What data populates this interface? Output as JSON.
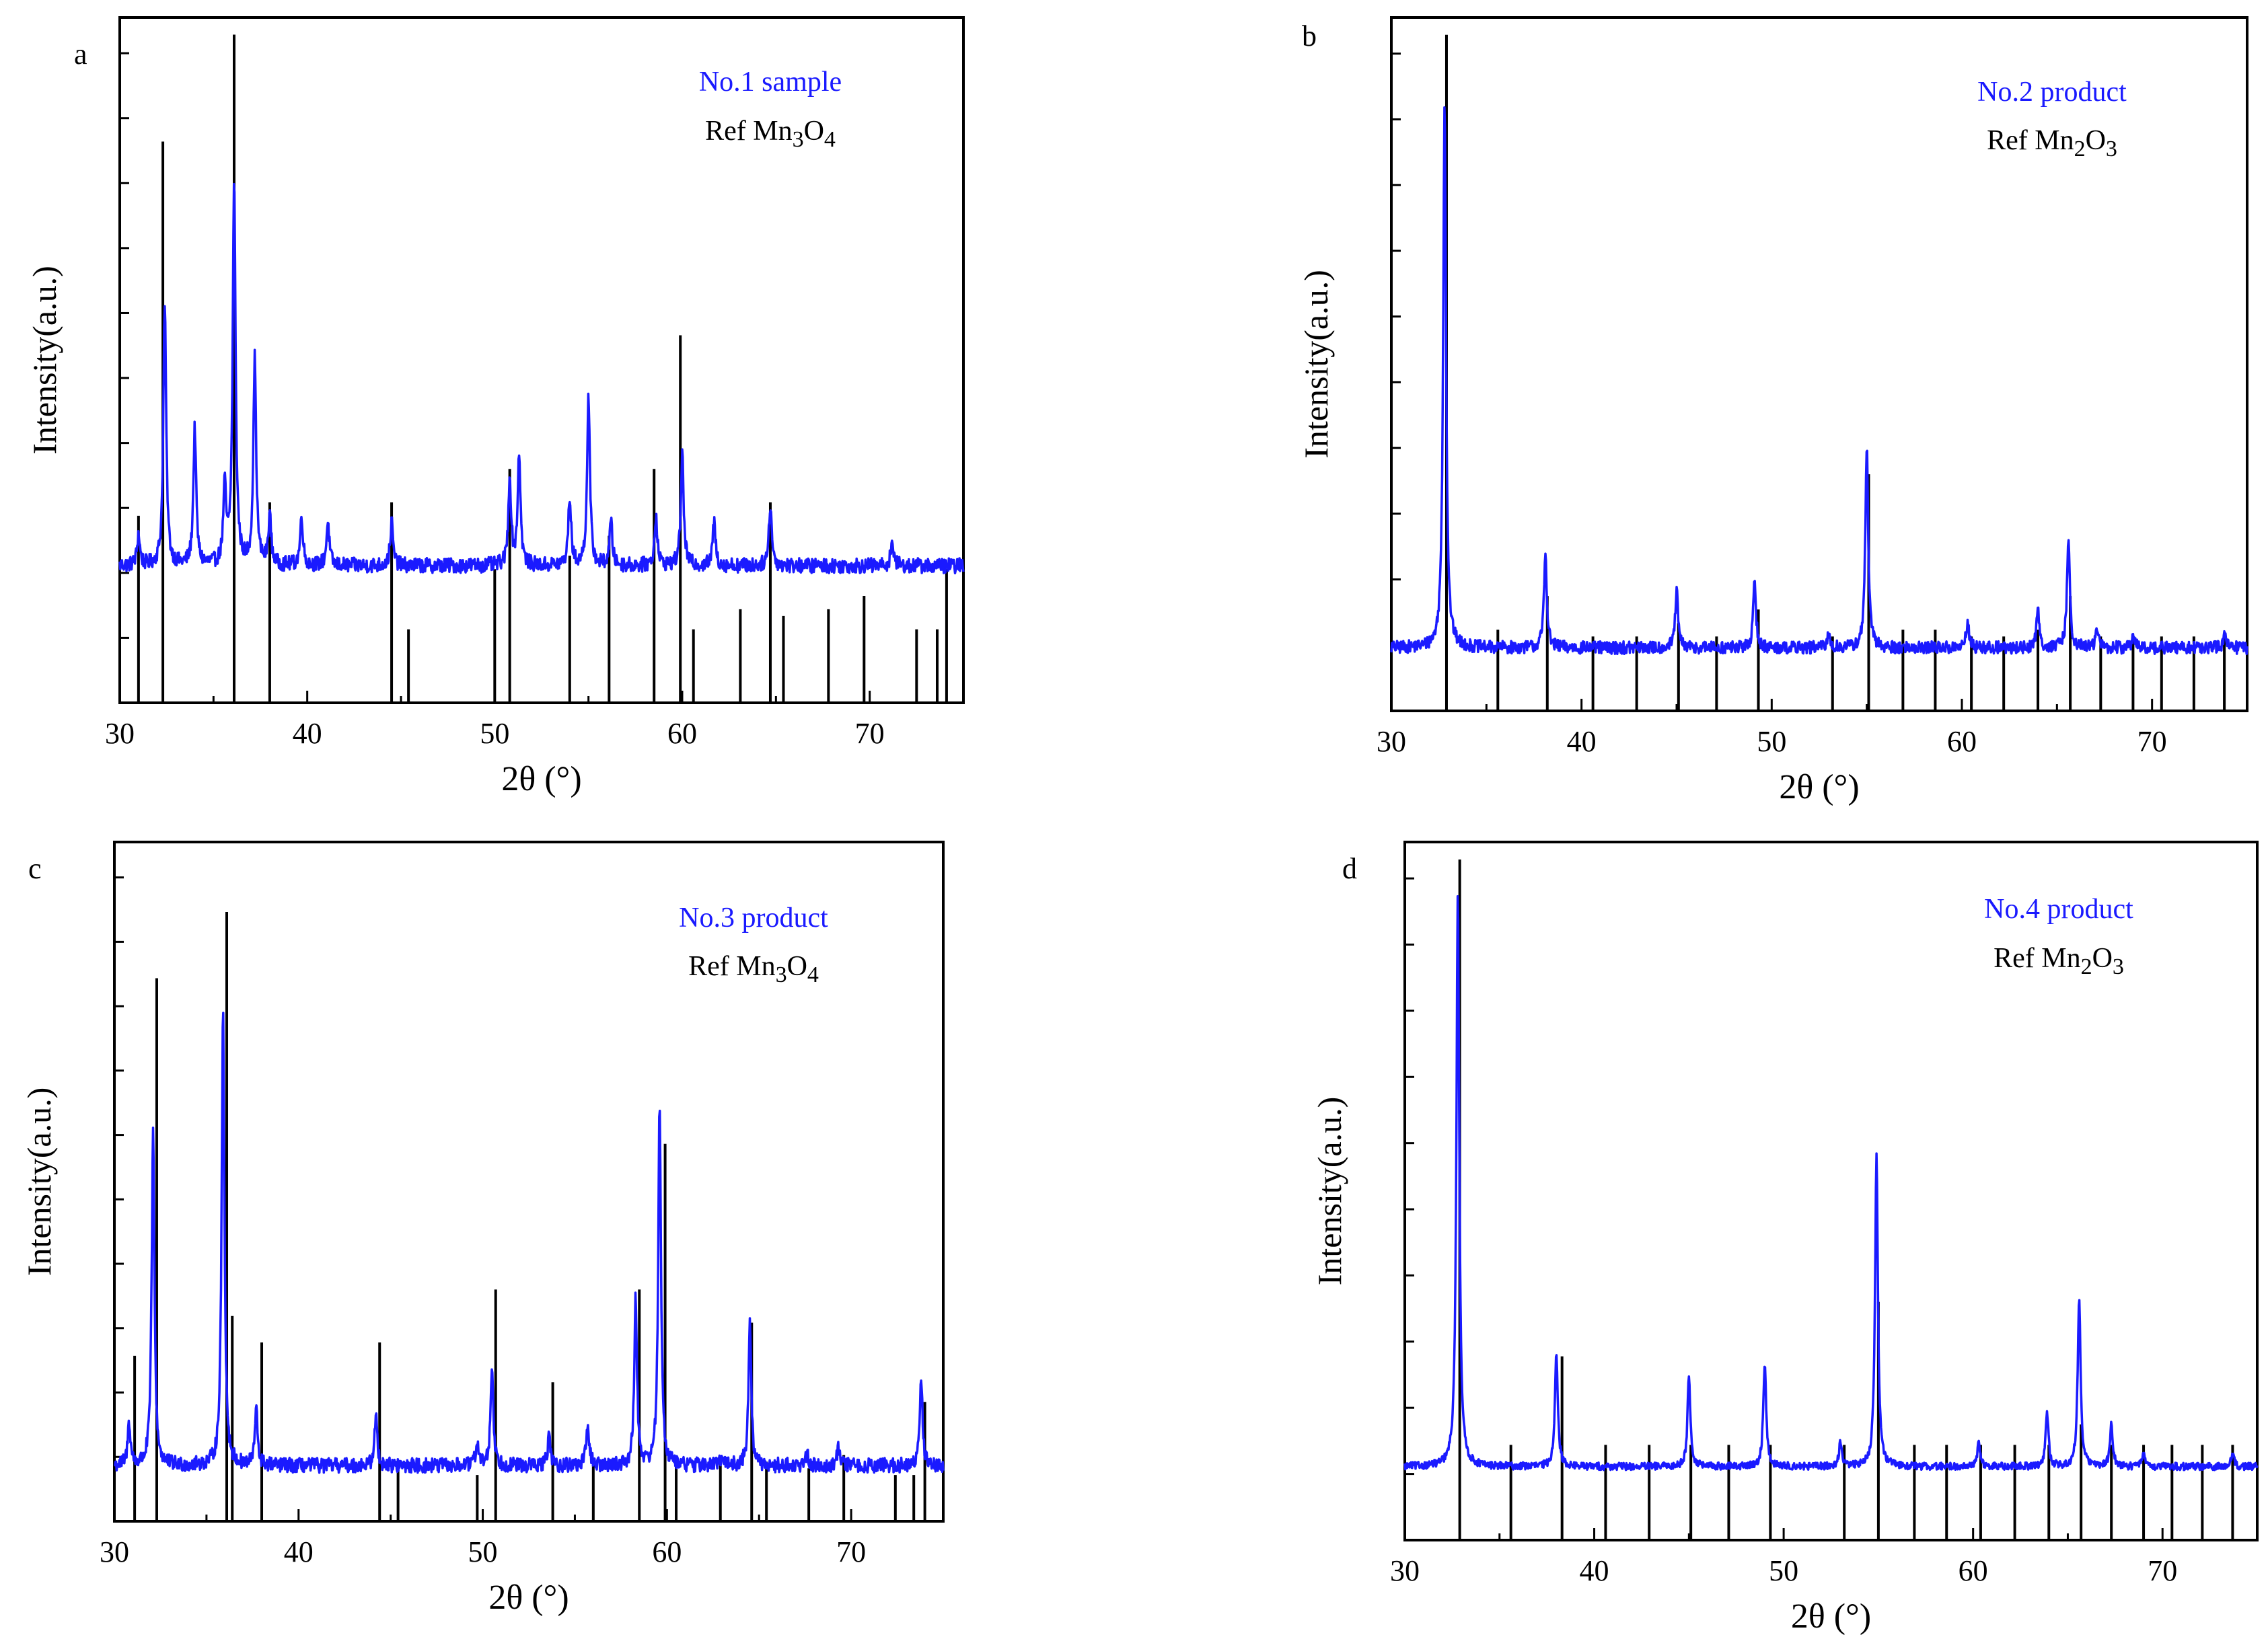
{
  "chart_data": [
    {
      "panel": "a",
      "type": "line",
      "xlabel": "2θ (°)",
      "ylabel": "Intensity(a.u.)",
      "xlim": [
        30,
        75
      ],
      "xticks": [
        30,
        40,
        50,
        60,
        70
      ],
      "ylim": [
        -0.08,
        1.02
      ],
      "baseline": 0.14,
      "noise": 0.012,
      "legend": [
        {
          "text": "No.1 sample",
          "color": "#1a1aff"
        },
        {
          "text": "Ref Mn",
          "sub1": "3",
          "mid": "O",
          "sub2": "4",
          "color": "#000000"
        }
      ],
      "series": [
        {
          "name": "No.1 sample",
          "color": "#1a1aff",
          "peaks": [
            [
              31.0,
              0.05
            ],
            [
              32.4,
              0.42
            ],
            [
              34.0,
              0.22
            ],
            [
              35.6,
              0.12
            ],
            [
              36.1,
              0.62
            ],
            [
              37.2,
              0.33
            ],
            [
              38.0,
              0.08
            ],
            [
              39.7,
              0.08
            ],
            [
              41.1,
              0.07
            ],
            [
              44.5,
              0.07
            ],
            [
              50.8,
              0.14
            ],
            [
              51.3,
              0.18
            ],
            [
              54.0,
              0.11
            ],
            [
              55.0,
              0.27
            ],
            [
              56.2,
              0.07
            ],
            [
              58.6,
              0.08
            ],
            [
              60.0,
              0.18
            ],
            [
              61.7,
              0.07
            ],
            [
              64.7,
              0.1
            ],
            [
              71.2,
              0.04
            ]
          ]
        },
        {
          "name": "Ref Mn3O4",
          "color": "#000000",
          "lines": [
            [
              31.0,
              0.28
            ],
            [
              32.3,
              0.84
            ],
            [
              36.1,
              1.0
            ],
            [
              38.0,
              0.3
            ],
            [
              44.5,
              0.3
            ],
            [
              45.4,
              0.11
            ],
            [
              50.0,
              0.2
            ],
            [
              50.8,
              0.35
            ],
            [
              54.0,
              0.22
            ],
            [
              56.1,
              0.25
            ],
            [
              58.5,
              0.35
            ],
            [
              59.9,
              0.55
            ],
            [
              60.6,
              0.11
            ],
            [
              63.1,
              0.14
            ],
            [
              64.7,
              0.3
            ],
            [
              65.4,
              0.13
            ],
            [
              67.8,
              0.14
            ],
            [
              69.7,
              0.16
            ],
            [
              72.5,
              0.11
            ],
            [
              73.6,
              0.11
            ],
            [
              74.1,
              0.2
            ]
          ]
        }
      ]
    },
    {
      "panel": "b",
      "type": "line",
      "xlabel": "2θ (°)",
      "ylabel": "Intensity(a.u.)",
      "xlim": [
        30,
        75
      ],
      "xticks": [
        30,
        40,
        50,
        60,
        70
      ],
      "ylim": [
        -0.08,
        1.02
      ],
      "baseline": 0.02,
      "noise": 0.01,
      "legend": [
        {
          "text": "No.2 product",
          "color": "#1a1aff"
        },
        {
          "text": "Ref Mn",
          "sub1": "2",
          "mid": "O",
          "sub2": "3",
          "color": "#000000"
        }
      ],
      "series": [
        {
          "name": "No.2 product",
          "color": "#1a1aff",
          "peaks": [
            [
              32.8,
              0.87
            ],
            [
              38.1,
              0.15
            ],
            [
              45.0,
              0.09
            ],
            [
              49.1,
              0.1
            ],
            [
              53.0,
              0.02
            ],
            [
              55.0,
              0.32
            ],
            [
              60.3,
              0.04
            ],
            [
              64.0,
              0.06
            ],
            [
              65.6,
              0.17
            ],
            [
              67.1,
              0.03
            ],
            [
              69.0,
              0.02
            ],
            [
              73.8,
              0.02
            ]
          ]
        },
        {
          "name": "Ref Mn2O3",
          "color": "#000000",
          "lines": [
            [
              32.9,
              1.0
            ],
            [
              35.6,
              0.12
            ],
            [
              38.2,
              0.17
            ],
            [
              40.6,
              0.11
            ],
            [
              42.9,
              0.11
            ],
            [
              45.1,
              0.13
            ],
            [
              47.1,
              0.11
            ],
            [
              49.3,
              0.15
            ],
            [
              53.2,
              0.11
            ],
            [
              55.1,
              0.35
            ],
            [
              56.9,
              0.12
            ],
            [
              58.6,
              0.12
            ],
            [
              60.5,
              0.11
            ],
            [
              62.2,
              0.11
            ],
            [
              64.0,
              0.12
            ],
            [
              65.7,
              0.17
            ],
            [
              67.3,
              0.11
            ],
            [
              69.0,
              0.11
            ],
            [
              70.5,
              0.11
            ],
            [
              72.2,
              0.11
            ],
            [
              73.8,
              0.11
            ]
          ]
        }
      ]
    },
    {
      "panel": "c",
      "type": "line",
      "xlabel": "2θ (°)",
      "ylabel": "Intensity(a.u.)",
      "xlim": [
        30,
        75
      ],
      "xticks": [
        30,
        40,
        50,
        60,
        70
      ],
      "ylim": [
        -0.08,
        1.02
      ],
      "baseline": 0.01,
      "noise": 0.012,
      "legend": [
        {
          "text": "No.3 product",
          "color": "#1a1aff"
        },
        {
          "text": "Ref Mn",
          "sub1": "3",
          "mid": "O",
          "sub2": "4",
          "color": "#000000"
        }
      ],
      "series": [
        {
          "name": "No.3 product",
          "color": "#1a1aff",
          "peaks": [
            [
              30.8,
              0.07
            ],
            [
              32.1,
              0.54
            ],
            [
              35.9,
              0.74
            ],
            [
              37.7,
              0.09
            ],
            [
              44.2,
              0.08
            ],
            [
              49.7,
              0.04
            ],
            [
              50.5,
              0.16
            ],
            [
              53.6,
              0.05
            ],
            [
              55.7,
              0.07
            ],
            [
              58.3,
              0.27
            ],
            [
              59.6,
              0.58
            ],
            [
              63.0,
              0.02
            ],
            [
              64.5,
              0.23
            ],
            [
              67.6,
              0.02
            ],
            [
              69.3,
              0.03
            ],
            [
              73.8,
              0.14
            ]
          ]
        },
        {
          "name": "Ref Mn3O4",
          "color": "#000000",
          "lines": [
            [
              31.1,
              0.25
            ],
            [
              32.3,
              0.82
            ],
            [
              36.1,
              0.92
            ],
            [
              36.4,
              0.31
            ],
            [
              38.0,
              0.27
            ],
            [
              44.4,
              0.27
            ],
            [
              45.4,
              0.08
            ],
            [
              49.7,
              0.07
            ],
            [
              50.7,
              0.35
            ],
            [
              53.8,
              0.21
            ],
            [
              56.0,
              0.09
            ],
            [
              58.5,
              0.35
            ],
            [
              59.9,
              0.57
            ],
            [
              60.5,
              0.1
            ],
            [
              62.9,
              0.09
            ],
            [
              64.6,
              0.3
            ],
            [
              65.4,
              0.09
            ],
            [
              67.7,
              0.08
            ],
            [
              69.6,
              0.1
            ],
            [
              72.4,
              0.07
            ],
            [
              73.4,
              0.07
            ],
            [
              74.0,
              0.18
            ]
          ]
        }
      ]
    },
    {
      "panel": "d",
      "type": "line",
      "xlabel": "2θ (°)",
      "ylabel": "Intensity(a.u.)",
      "xlim": [
        30,
        75
      ],
      "xticks": [
        30,
        40,
        50,
        60,
        70
      ],
      "ylim": [
        -0.12,
        1.02
      ],
      "baseline": 0.0,
      "noise": 0.006,
      "legend": [
        {
          "text": "No.4 product",
          "color": "#1a1aff"
        },
        {
          "text": "Ref Mn",
          "sub1": "2",
          "mid": "O",
          "sub2": "3",
          "color": "#000000"
        }
      ],
      "series": [
        {
          "name": "No.4 product",
          "color": "#1a1aff",
          "peaks": [
            [
              32.8,
              0.94
            ],
            [
              38.0,
              0.19
            ],
            [
              45.0,
              0.15
            ],
            [
              49.0,
              0.17
            ],
            [
              53.0,
              0.04
            ],
            [
              54.9,
              0.51
            ],
            [
              60.3,
              0.04
            ],
            [
              63.9,
              0.09
            ],
            [
              65.6,
              0.28
            ],
            [
              67.3,
              0.07
            ],
            [
              69.0,
              0.02
            ],
            [
              73.7,
              0.02
            ]
          ]
        },
        {
          "name": "Ref Mn2O3",
          "color": "#000000",
          "lines": [
            [
              32.9,
              1.0
            ],
            [
              35.6,
              0.14
            ],
            [
              38.3,
              0.27
            ],
            [
              40.6,
              0.14
            ],
            [
              42.9,
              0.14
            ],
            [
              45.1,
              0.14
            ],
            [
              47.1,
              0.14
            ],
            [
              49.3,
              0.14
            ],
            [
              53.2,
              0.14
            ],
            [
              55.0,
              0.35
            ],
            [
              56.9,
              0.14
            ],
            [
              58.6,
              0.14
            ],
            [
              60.4,
              0.14
            ],
            [
              62.2,
              0.14
            ],
            [
              64.0,
              0.14
            ],
            [
              65.7,
              0.17
            ],
            [
              67.3,
              0.14
            ],
            [
              69.0,
              0.14
            ],
            [
              70.5,
              0.14
            ],
            [
              72.1,
              0.14
            ],
            [
              73.7,
              0.14
            ]
          ]
        }
      ]
    }
  ]
}
